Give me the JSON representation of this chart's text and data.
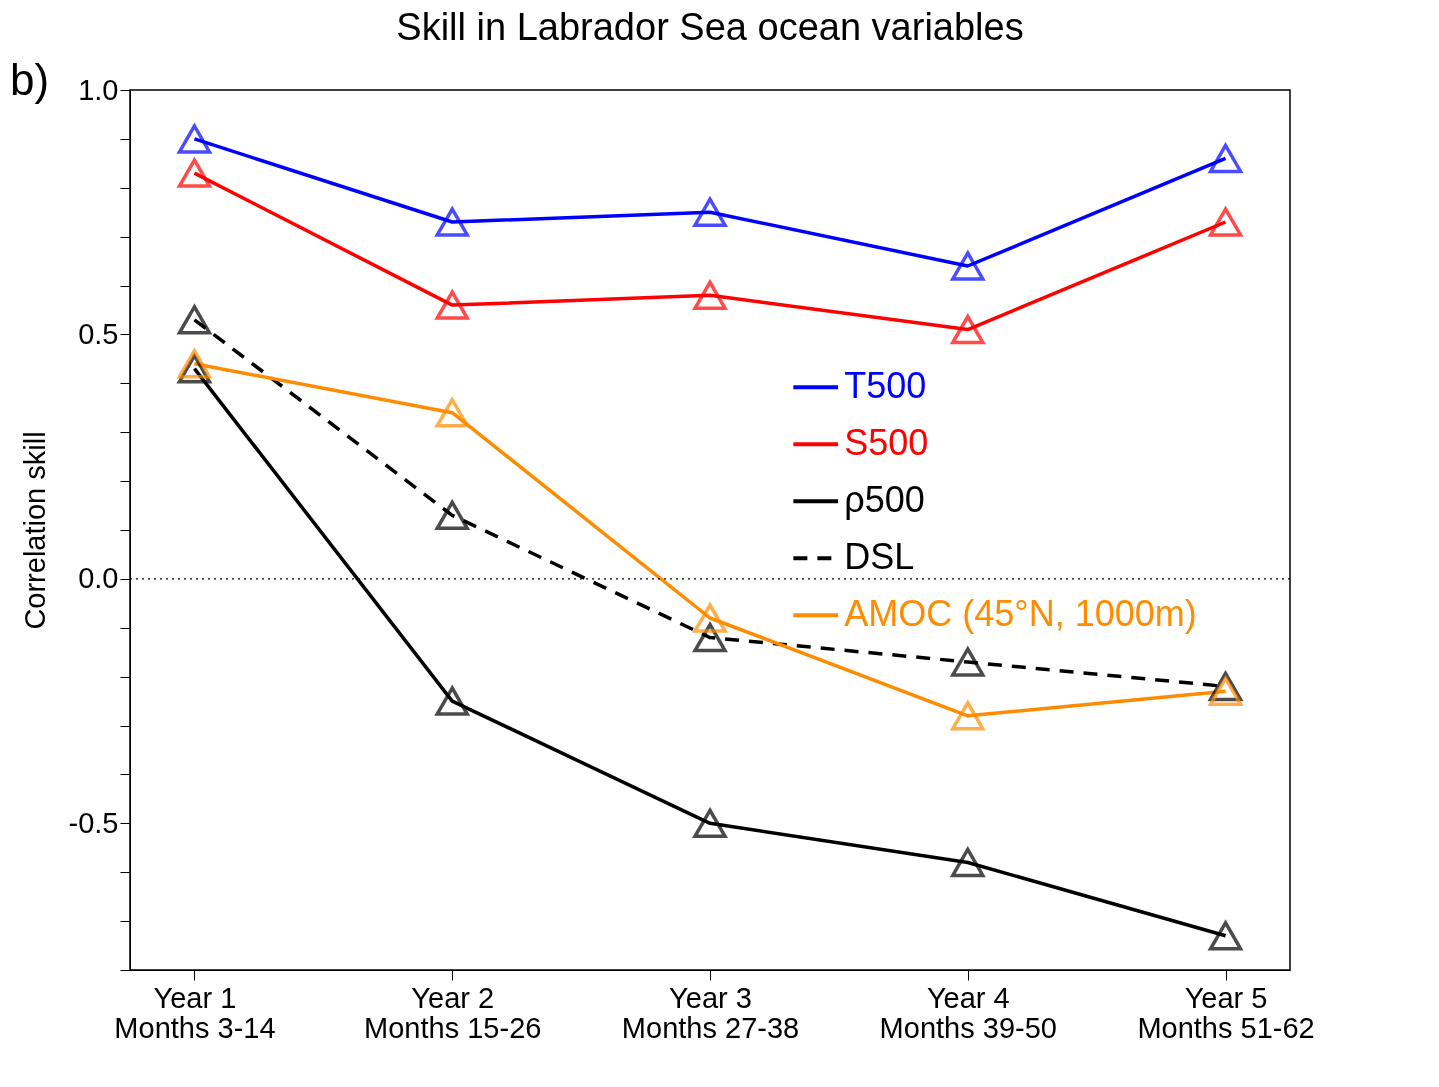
{
  "chart_data": {
    "type": "line",
    "title": "Skill in Labrador Sea ocean variables",
    "ylabel": "Correlation skill",
    "annotations": [
      "b)"
    ],
    "categories": [
      "Year 1\nMonths 3-14",
      "Year 2\nMonths 15-26",
      "Year 3\nMonths 27-38",
      "Year 4\nMonths 39-50",
      "Year 5\nMonths 51-62"
    ],
    "series": [
      {
        "name": "T500",
        "color": "#0000ff",
        "line_style": "solid",
        "values": [
          0.9,
          0.73,
          0.75,
          0.64,
          0.86
        ]
      },
      {
        "name": "S500",
        "color": "#ff0000",
        "line_style": "solid",
        "values": [
          0.83,
          0.56,
          0.58,
          0.51,
          0.73
        ]
      },
      {
        "name": "ρ500",
        "color": "#000000",
        "line_style": "solid",
        "values": [
          0.43,
          -0.25,
          -0.5,
          -0.58,
          -0.73
        ]
      },
      {
        "name": "DSL",
        "color": "#000000",
        "line_style": "dashed",
        "values": [
          0.53,
          0.13,
          -0.12,
          -0.17,
          -0.22
        ]
      },
      {
        "name": "AMOC (45°N, 1000m)",
        "color": "#ff8c00",
        "line_style": "solid",
        "values": [
          0.44,
          0.34,
          -0.08,
          -0.28,
          -0.23
        ]
      }
    ],
    "ylim": [
      -0.8,
      1.0
    ],
    "yticks": [
      {
        "value": -0.8,
        "label": null
      },
      {
        "value": -0.7,
        "label": null
      },
      {
        "value": -0.6,
        "label": null
      },
      {
        "value": -0.5,
        "label": "-0.5"
      },
      {
        "value": -0.4,
        "label": null
      },
      {
        "value": -0.3,
        "label": null
      },
      {
        "value": -0.2,
        "label": null
      },
      {
        "value": -0.1,
        "label": null
      },
      {
        "value": 0,
        "label": "0.0"
      },
      {
        "value": 0.1,
        "label": null
      },
      {
        "value": 0.2,
        "label": null
      },
      {
        "value": 0.3,
        "label": null
      },
      {
        "value": 0.4,
        "label": null
      },
      {
        "value": 0.5,
        "label": "0.5"
      },
      {
        "value": 0.6,
        "label": null
      },
      {
        "value": 0.7,
        "label": null
      },
      {
        "value": 0.8,
        "label": null
      },
      {
        "value": 0.9,
        "label": null
      },
      {
        "value": 1.0,
        "label": "1.0"
      }
    ],
    "ref_lines": [
      {
        "axis": "y",
        "value": 0,
        "line_style": "dotted",
        "color": "#000000"
      }
    ],
    "grid": false,
    "legend": "right",
    "marker": "triangle"
  }
}
